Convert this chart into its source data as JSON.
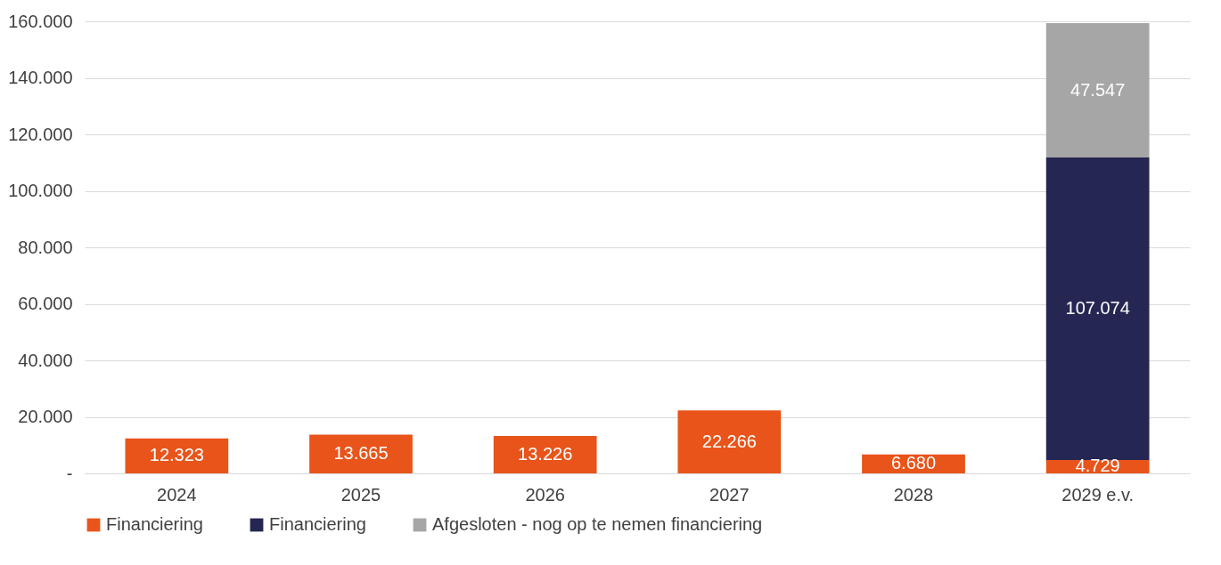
{
  "chart_data": {
    "type": "bar",
    "stacked": true,
    "categories": [
      "2024",
      "2025",
      "2026",
      "2027",
      "2028",
      "2029 e.v."
    ],
    "series": [
      {
        "name": "Financiering",
        "color": "#e8541a",
        "values": [
          12323,
          13665,
          13226,
          22266,
          6680,
          4729
        ],
        "value_labels": [
          "12.323",
          "13.665",
          "13.226",
          "22.266",
          "6.680",
          "4.729"
        ]
      },
      {
        "name": "Financiering",
        "color": "#252652",
        "values": [
          null,
          null,
          null,
          null,
          null,
          107074
        ],
        "value_labels": [
          null,
          null,
          null,
          null,
          null,
          "107.074"
        ]
      },
      {
        "name": "Afgesloten - nog op te nemen financiering",
        "color": "#a6a6a6",
        "values": [
          null,
          null,
          null,
          null,
          null,
          47547
        ],
        "value_labels": [
          null,
          null,
          null,
          null,
          null,
          "47.547"
        ]
      }
    ],
    "ylim": [
      0,
      160000
    ],
    "yticks": [
      {
        "value": 0,
        "label": "-"
      },
      {
        "value": 20000,
        "label": "20.000"
      },
      {
        "value": 40000,
        "label": "40.000"
      },
      {
        "value": 60000,
        "label": "60.000"
      },
      {
        "value": 80000,
        "label": "80.000"
      },
      {
        "value": 100000,
        "label": "100.000"
      },
      {
        "value": 120000,
        "label": "120.000"
      },
      {
        "value": 140000,
        "label": "140.000"
      },
      {
        "value": 160000,
        "label": "160.000"
      }
    ],
    "grid": "y",
    "legend": "bottom"
  }
}
